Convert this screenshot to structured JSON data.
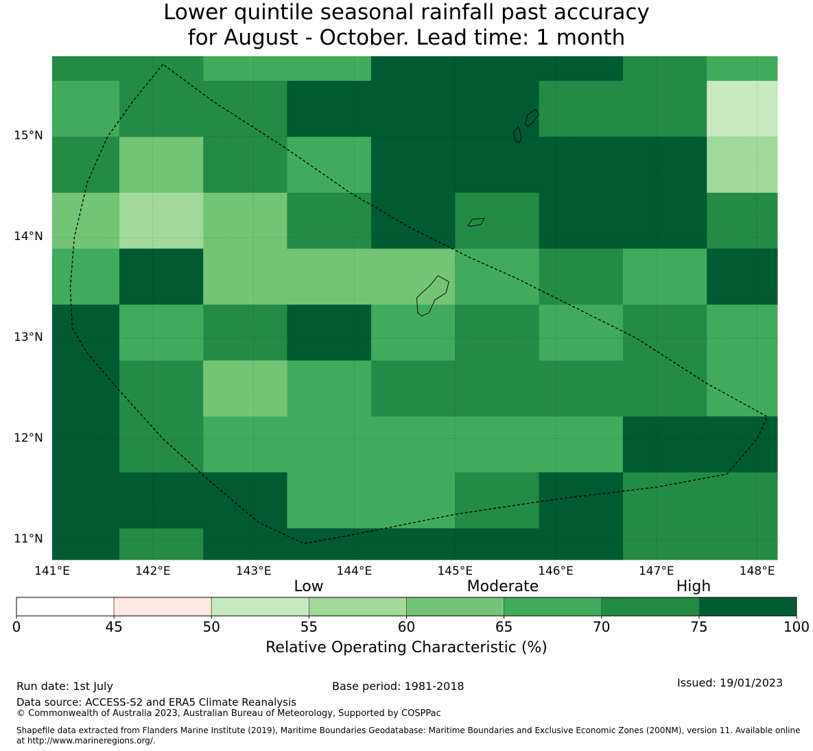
{
  "title_line1": "Lower quintile seasonal rainfall past accuracy",
  "title_line2": "for August - October. Lead time: 1 month",
  "map": {
    "lon_range": [
      141.0,
      148.2
    ],
    "lat_range": [
      10.8,
      15.8
    ],
    "lon_labels": [
      "141°E",
      "142°E",
      "143°E",
      "144°E",
      "145°E",
      "146°E",
      "147°E",
      "148°E"
    ],
    "lat_labels": [
      "15°N",
      "14°N",
      "13°N",
      "12°N",
      "11°N"
    ],
    "grid_lon_edges": [
      141.0,
      141.667,
      142.5,
      143.333,
      144.167,
      145.0,
      145.833,
      146.667,
      147.5,
      148.2
    ],
    "grid_lat_edges": [
      15.8,
      15.556,
      15.0,
      14.444,
      13.889,
      13.333,
      12.778,
      12.222,
      11.667,
      11.111,
      10.8
    ],
    "grid_classes": [
      [
        7,
        7,
        6,
        6,
        8,
        8,
        8,
        7,
        6
      ],
      [
        6,
        7,
        7,
        8,
        8,
        8,
        7,
        7,
        3
      ],
      [
        7,
        5,
        7,
        6,
        8,
        8,
        8,
        8,
        4
      ],
      [
        5,
        4,
        5,
        7,
        8,
        7,
        8,
        8,
        7
      ],
      [
        6,
        8,
        5,
        5,
        5,
        6,
        7,
        6,
        8
      ],
      [
        8,
        6,
        7,
        8,
        6,
        7,
        6,
        7,
        6
      ],
      [
        8,
        7,
        5,
        6,
        7,
        7,
        7,
        7,
        6
      ],
      [
        8,
        7,
        6,
        6,
        6,
        6,
        6,
        8,
        8
      ],
      [
        8,
        8,
        8,
        6,
        6,
        7,
        8,
        7,
        7
      ],
      [
        8,
        7,
        8,
        8,
        8,
        8,
        8,
        7,
        7
      ]
    ],
    "eez_boundary": [
      [
        142.1,
        15.72
      ],
      [
        141.8,
        15.35
      ],
      [
        141.55,
        15.0
      ],
      [
        141.35,
        14.55
      ],
      [
        141.22,
        14.0
      ],
      [
        141.18,
        13.5
      ],
      [
        141.2,
        13.1
      ],
      [
        141.35,
        12.85
      ],
      [
        141.65,
        12.5
      ],
      [
        142.1,
        12.0
      ],
      [
        142.6,
        11.55
      ],
      [
        143.05,
        11.17
      ],
      [
        143.5,
        10.96
      ],
      [
        144.0,
        11.05
      ],
      [
        145.0,
        11.25
      ],
      [
        146.0,
        11.4
      ],
      [
        147.0,
        11.52
      ],
      [
        147.7,
        11.65
      ],
      [
        148.0,
        12.0
      ],
      [
        148.1,
        12.22
      ],
      [
        147.5,
        12.55
      ],
      [
        146.8,
        13.0
      ],
      [
        146.2,
        13.3
      ],
      [
        145.6,
        13.6
      ],
      [
        145.15,
        13.8
      ],
      [
        144.55,
        14.1
      ],
      [
        143.95,
        14.45
      ],
      [
        143.3,
        14.9
      ],
      [
        142.6,
        15.35
      ],
      [
        142.1,
        15.72
      ]
    ],
    "islands": [
      [
        [
          144.63,
          13.25
        ],
        [
          144.62,
          13.4
        ],
        [
          144.67,
          13.45
        ],
        [
          144.75,
          13.52
        ],
        [
          144.83,
          13.62
        ],
        [
          144.94,
          13.56
        ],
        [
          144.91,
          13.45
        ],
        [
          144.8,
          13.38
        ],
        [
          144.74,
          13.25
        ],
        [
          144.67,
          13.22
        ],
        [
          144.63,
          13.25
        ]
      ],
      [
        [
          145.7,
          15.13
        ],
        [
          145.72,
          15.22
        ],
        [
          145.8,
          15.27
        ],
        [
          145.83,
          15.22
        ],
        [
          145.78,
          15.15
        ],
        [
          145.72,
          15.1
        ],
        [
          145.7,
          15.13
        ]
      ],
      [
        [
          145.6,
          14.96
        ],
        [
          145.58,
          15.05
        ],
        [
          145.63,
          15.1
        ],
        [
          145.66,
          15.0
        ],
        [
          145.64,
          14.94
        ],
        [
          145.6,
          14.96
        ]
      ],
      [
        [
          145.13,
          14.12
        ],
        [
          145.17,
          14.18
        ],
        [
          145.29,
          14.19
        ],
        [
          145.26,
          14.13
        ],
        [
          145.15,
          14.11
        ],
        [
          145.13,
          14.12
        ]
      ]
    ]
  },
  "colorbar": {
    "ticks": [
      "0",
      "45",
      "50",
      "55",
      "60",
      "65",
      "70",
      "75",
      "100"
    ],
    "colors": [
      "#ffffff",
      "#fee8df",
      "#c7e9c0",
      "#a1d99b",
      "#74c476",
      "#41ab5d",
      "#238b45",
      "#005a32"
    ],
    "category_labels": [
      "Low",
      "Moderate",
      "High"
    ],
    "label": "Relative Operating Characteristic (%)"
  },
  "footer": {
    "run_date": "Run date: 1st July",
    "base_period": "Base period: 1981-2018",
    "issued": "Issued: 19/01/2023",
    "data_source": "Data source: ACCESS-S2 and ERA5 Climate Reanalysis",
    "copyright": "© Commonwealth of Australia 2023, Australian Bureau of Meteorology, Supported by COSPPac",
    "shapefile": "Shapefile data extracted from Flanders Marine Institute (2019), Maritime Boundaries Geodatabase: Maritime Boundaries and Exclusive Economic Zones (200NM), version 11. Available online at http://www.marineregions.org/."
  }
}
